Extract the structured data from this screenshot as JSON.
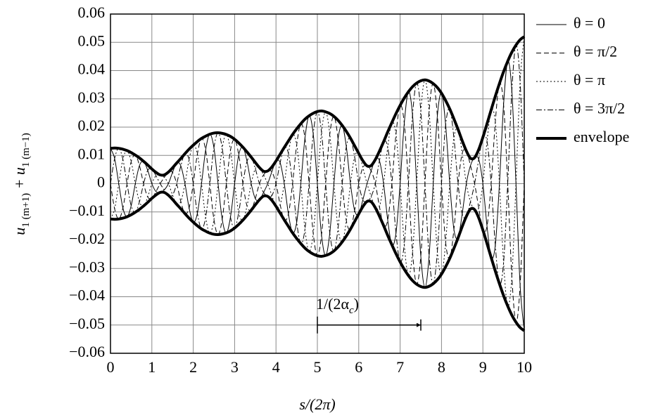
{
  "chart_data": {
    "type": "line",
    "ylabel": [
      "u",
      "1 (m+1)",
      " + u",
      "1 (m−1)"
    ],
    "xlabel": "s/(2π)",
    "xlim": [
      0,
      10
    ],
    "ylim": [
      -0.06,
      0.06
    ],
    "xticks": [
      0,
      1,
      2,
      3,
      4,
      5,
      6,
      7,
      8,
      9,
      10
    ],
    "yticks": [
      {
        "value": -0.06,
        "label": "−0.06"
      },
      {
        "value": -0.05,
        "label": "−0.05"
      },
      {
        "value": -0.04,
        "label": "−0.04"
      },
      {
        "value": -0.03,
        "label": "−0.03"
      },
      {
        "value": -0.02,
        "label": "−0.02"
      },
      {
        "value": -0.01,
        "label": "−0.01"
      },
      0,
      0.01,
      0.02,
      0.03,
      0.04,
      0.05,
      0.06
    ],
    "grid": true,
    "legend": "right",
    "annotation": {
      "text": [
        "1/(2α",
        "c",
        ")"
      ],
      "x": [
        5,
        7.5
      ],
      "y": -0.05
    },
    "x": [
      0,
      0.1,
      0.2,
      0.3,
      0.4,
      0.5,
      0.6,
      0.7,
      0.8,
      0.9,
      1,
      1.1,
      1.2,
      1.3,
      1.4,
      1.5,
      1.6,
      1.7,
      1.8,
      1.9,
      2,
      2.1,
      2.2,
      2.3,
      2.4,
      2.5,
      2.6,
      2.7,
      2.8,
      2.9,
      3,
      3.1,
      3.2,
      3.3,
      3.4,
      3.5,
      3.6,
      3.7,
      3.8,
      3.9,
      4,
      4.1,
      4.2,
      4.3,
      4.4,
      4.5,
      4.6,
      4.7,
      4.8,
      4.9,
      5,
      5.1,
      5.2,
      5.3,
      5.4,
      5.5,
      5.6,
      5.7,
      5.8,
      5.9,
      6,
      6.1,
      6.2,
      6.3,
      6.4,
      6.5,
      6.6,
      6.7,
      6.8,
      6.9,
      7,
      7.1,
      7.2,
      7.3,
      7.4,
      7.5,
      7.6,
      7.7,
      7.8,
      7.9,
      8,
      8.1,
      8.2,
      8.3,
      8.4,
      8.5,
      8.6,
      8.7,
      8.8,
      8.9,
      9,
      9.1,
      9.2,
      9.3,
      9.4,
      9.5,
      9.6,
      9.7,
      9.8,
      9.9,
      10
    ],
    "series": [
      {
        "name": "θ = 0",
        "color": "#000000",
        "dash": "solid",
        "width": 1,
        "values": [
          0.0125,
          0.0089,
          0,
          -0.0086,
          -0.0117,
          -0.0078,
          0,
          0.0064,
          0.0079,
          0.0047,
          0,
          -0.0028,
          -0.0031,
          -0.0022,
          0,
          0.004,
          0.0073,
          0.0063,
          0,
          -0.0086,
          -0.0136,
          -0.0105,
          0,
          0.0119,
          0.0175,
          0.0127,
          0,
          -0.0126,
          -0.0174,
          -0.0118,
          0,
          0.0102,
          0.0129,
          0.0079,
          0,
          -0.0053,
          -0.0057,
          -0.0031,
          0,
          0.0042,
          0.008,
          0.0074,
          0,
          -0.0107,
          -0.0174,
          -0.0137,
          0,
          0.0161,
          0.024,
          0.0176,
          0,
          -0.0182,
          -0.0254,
          -0.0175,
          0,
          0.0158,
          0.0206,
          0.0131,
          0,
          -0.0095,
          -0.0107,
          -0.0057,
          0,
          0.0045,
          0.0085,
          0.0081,
          0,
          -0.0129,
          -0.0216,
          -0.0175,
          0,
          0.0214,
          0.0325,
          0.0243,
          0,
          -0.0257,
          -0.0367,
          -0.0257,
          0,
          0.024,
          0.032,
          0.0208,
          0,
          -0.0162,
          -0.0192,
          -0.0107,
          0,
          0.0064,
          0.0092,
          0.0086,
          0,
          -0.015,
          -0.0261,
          -0.0218,
          0,
          0.028,
          0.0433,
          0.0329,
          0,
          -0.036,
          -0.052
        ]
      },
      {
        "name": "θ = π/2",
        "color": "#000000",
        "dash": "dashed",
        "width": 1,
        "values": [
          0,
          -0.0089,
          -0.0125,
          -0.0086,
          0,
          0.0078,
          0.0101,
          0.0064,
          0,
          -0.0047,
          -0.0052,
          -0.0028,
          0,
          0.0022,
          0.0041,
          0.004,
          0,
          -0.0063,
          -0.0106,
          -0.0086,
          0,
          0.0105,
          0.016,
          0.0119,
          0,
          -0.0127,
          -0.018,
          -0.0126,
          0,
          0.0118,
          0.0157,
          0.0102,
          0,
          -0.0079,
          -0.0094,
          -0.0053,
          0,
          0.0031,
          0.0045,
          0.0042,
          0,
          -0.0074,
          -0.0128,
          -0.0107,
          0,
          0.0137,
          0.0212,
          0.0161,
          0,
          -0.0176,
          -0.0255,
          -0.0182,
          0,
          0.0175,
          0.0238,
          0.0158,
          0,
          -0.0131,
          -0.0161,
          -0.0095,
          0,
          0.0057,
          0.0063,
          0.0045,
          0,
          -0.0081,
          -0.0148,
          -0.0129,
          0,
          0.0175,
          0.0277,
          0.0214,
          0,
          -0.0243,
          -0.0356,
          -0.0257,
          0,
          0.0257,
          0.0354,
          0.024,
          0,
          -0.0208,
          -0.0264,
          -0.0162,
          0,
          0.0107,
          0.0116,
          0.0064,
          0,
          -0.0086,
          -0.0164,
          -0.015,
          0,
          0.0218,
          0.0354,
          0.028,
          0,
          -0.0329,
          -0.049,
          -0.036,
          0
        ]
      },
      {
        "name": "θ = π",
        "color": "#000000",
        "dash": "dotted",
        "width": 1,
        "values": [
          -0.0125,
          -0.0089,
          0,
          0.0086,
          0.0117,
          0.0078,
          0,
          -0.0064,
          -0.0079,
          -0.0047,
          0,
          0.0028,
          0.0031,
          0.0022,
          0,
          -0.004,
          -0.0073,
          -0.0063,
          0,
          0.0086,
          0.0136,
          0.0105,
          0,
          -0.0119,
          -0.0175,
          -0.0127,
          0,
          0.0126,
          0.0174,
          0.0118,
          0,
          -0.0102,
          -0.0129,
          -0.0079,
          0,
          0.0053,
          0.0057,
          0.0031,
          0,
          -0.0042,
          -0.008,
          -0.0074,
          0,
          0.0107,
          0.0174,
          0.0137,
          0,
          -0.0161,
          -0.024,
          -0.0176,
          0,
          0.0182,
          0.0254,
          0.0175,
          0,
          -0.0158,
          -0.0206,
          -0.0131,
          0,
          0.0095,
          0.0107,
          0.0057,
          0,
          -0.0045,
          -0.0085,
          -0.0081,
          0,
          0.0129,
          0.0216,
          0.0175,
          0,
          -0.0214,
          -0.0325,
          -0.0243,
          0,
          0.0257,
          0.0367,
          0.0257,
          0,
          -0.024,
          -0.032,
          -0.0208,
          0,
          0.0162,
          0.0192,
          0.0107,
          0,
          -0.0064,
          -0.0092,
          -0.0086,
          0,
          0.015,
          0.0261,
          0.0218,
          0,
          -0.028,
          -0.0433,
          -0.0329,
          0,
          0.036,
          0.052
        ]
      },
      {
        "name": "θ = 3π/2",
        "color": "#000000",
        "dash": "dashdot",
        "width": 1,
        "values": [
          0,
          0.0089,
          0.0125,
          0.0086,
          0,
          -0.0078,
          -0.0101,
          -0.0064,
          0,
          0.0047,
          0.0052,
          0.0028,
          0,
          -0.0022,
          -0.0041,
          -0.004,
          0,
          0.0063,
          0.0106,
          0.0086,
          0,
          -0.0105,
          -0.016,
          -0.0119,
          0,
          0.0127,
          0.018,
          0.0126,
          0,
          -0.0118,
          -0.0157,
          -0.0102,
          0,
          0.0079,
          0.0094,
          0.0053,
          0,
          -0.0031,
          -0.0045,
          -0.0042,
          0,
          0.0074,
          0.0128,
          0.0107,
          0,
          -0.0137,
          -0.0212,
          -0.0161,
          0,
          0.0176,
          0.0255,
          0.0182,
          0,
          -0.0175,
          -0.0238,
          -0.0158,
          0,
          0.0131,
          0.0161,
          0.0095,
          0,
          -0.0057,
          -0.0063,
          -0.0045,
          0,
          0.0081,
          0.0148,
          0.0129,
          0,
          -0.0175,
          -0.0277,
          -0.0214,
          0,
          0.0243,
          0.0356,
          0.0257,
          0,
          -0.0257,
          -0.0354,
          -0.024,
          0,
          0.0208,
          0.0264,
          0.0162,
          0,
          -0.0107,
          -0.0116,
          -0.0064,
          0,
          0.0086,
          0.0164,
          0.015,
          0,
          -0.0218,
          -0.0354,
          -0.028,
          0,
          0.0329,
          0.049,
          0.036,
          0
        ]
      },
      {
        "name": "envelope",
        "color": "#000000",
        "dash": "solid",
        "width": 4,
        "values": [
          [
            -0.0125,
            0.0125
          ],
          [
            -0.0126,
            0.0126
          ],
          [
            -0.0125,
            0.0125
          ],
          [
            -0.0122,
            0.0122
          ],
          [
            -0.0117,
            0.0117
          ],
          [
            -0.011,
            0.011
          ],
          [
            -0.0101,
            0.0101
          ],
          [
            -0.0091,
            0.0091
          ],
          [
            -0.0079,
            0.0079
          ],
          [
            -0.0066,
            0.0066
          ],
          [
            -0.0052,
            0.0052
          ],
          [
            -0.004,
            0.004
          ],
          [
            -0.0031,
            0.0031
          ],
          [
            -0.0031,
            0.0031
          ],
          [
            -0.0041,
            0.0041
          ],
          [
            -0.0056,
            0.0056
          ],
          [
            -0.0073,
            0.0073
          ],
          [
            -0.0089,
            0.0089
          ],
          [
            -0.0106,
            0.0106
          ],
          [
            -0.0122,
            0.0122
          ],
          [
            -0.0136,
            0.0136
          ],
          [
            -0.0149,
            0.0149
          ],
          [
            -0.016,
            0.016
          ],
          [
            -0.0168,
            0.0168
          ],
          [
            -0.0175,
            0.0175
          ],
          [
            -0.0179,
            0.0179
          ],
          [
            -0.018,
            0.018
          ],
          [
            -0.0178,
            0.0178
          ],
          [
            -0.0174,
            0.0174
          ],
          [
            -0.0167,
            0.0167
          ],
          [
            -0.0157,
            0.0157
          ],
          [
            -0.0144,
            0.0144
          ],
          [
            -0.0129,
            0.0129
          ],
          [
            -0.0112,
            0.0112
          ],
          [
            -0.0094,
            0.0094
          ],
          [
            -0.0075,
            0.0075
          ],
          [
            -0.0057,
            0.0057
          ],
          [
            -0.0044,
            0.0044
          ],
          [
            -0.0045,
            0.0045
          ],
          [
            -0.0059,
            0.0059
          ],
          [
            -0.008,
            0.008
          ],
          [
            -0.0104,
            0.0104
          ],
          [
            -0.0128,
            0.0128
          ],
          [
            -0.0151,
            0.0151
          ],
          [
            -0.0174,
            0.0174
          ],
          [
            -0.0194,
            0.0194
          ],
          [
            -0.0212,
            0.0212
          ],
          [
            -0.0228,
            0.0228
          ],
          [
            -0.024,
            0.024
          ],
          [
            -0.0249,
            0.0249
          ],
          [
            -0.0255,
            0.0255
          ],
          [
            -0.0257,
            0.0257
          ],
          [
            -0.0254,
            0.0254
          ],
          [
            -0.0248,
            0.0248
          ],
          [
            -0.0238,
            0.0238
          ],
          [
            -0.0224,
            0.0224
          ],
          [
            -0.0206,
            0.0206
          ],
          [
            -0.0185,
            0.0185
          ],
          [
            -0.0161,
            0.0161
          ],
          [
            -0.0134,
            0.0134
          ],
          [
            -0.0107,
            0.0107
          ],
          [
            -0.0081,
            0.0081
          ],
          [
            -0.0063,
            0.0063
          ],
          [
            -0.0064,
            0.0064
          ],
          [
            -0.0085,
            0.0085
          ],
          [
            -0.0115,
            0.0115
          ],
          [
            -0.0148,
            0.0148
          ],
          [
            -0.0183,
            0.0183
          ],
          [
            -0.0216,
            0.0216
          ],
          [
            -0.0248,
            0.0248
          ],
          [
            -0.0277,
            0.0277
          ],
          [
            -0.0303,
            0.0303
          ],
          [
            -0.0325,
            0.0325
          ],
          [
            -0.0343,
            0.0343
          ],
          [
            -0.0356,
            0.0356
          ],
          [
            -0.0364,
            0.0364
          ],
          [
            -0.0367,
            0.0367
          ],
          [
            -0.0363,
            0.0363
          ],
          [
            -0.0354,
            0.0354
          ],
          [
            -0.034,
            0.034
          ],
          [
            -0.032,
            0.032
          ],
          [
            -0.0294,
            0.0294
          ],
          [
            -0.0264,
            0.0264
          ],
          [
            -0.0229,
            0.0229
          ],
          [
            -0.0192,
            0.0192
          ],
          [
            -0.0152,
            0.0152
          ],
          [
            -0.0116,
            0.0116
          ],
          [
            -0.009,
            0.009
          ],
          [
            -0.0092,
            0.0092
          ],
          [
            -0.0121,
            0.0121
          ],
          [
            -0.0164,
            0.0164
          ],
          [
            -0.0212,
            0.0212
          ],
          [
            -0.0261,
            0.0261
          ],
          [
            -0.0309,
            0.0309
          ],
          [
            -0.0354,
            0.0354
          ],
          [
            -0.0396,
            0.0396
          ],
          [
            -0.0433,
            0.0433
          ],
          [
            -0.0465,
            0.0465
          ],
          [
            -0.049,
            0.049
          ],
          [
            -0.0509,
            0.0509
          ],
          [
            -0.052,
            0.052
          ]
        ]
      }
    ]
  }
}
